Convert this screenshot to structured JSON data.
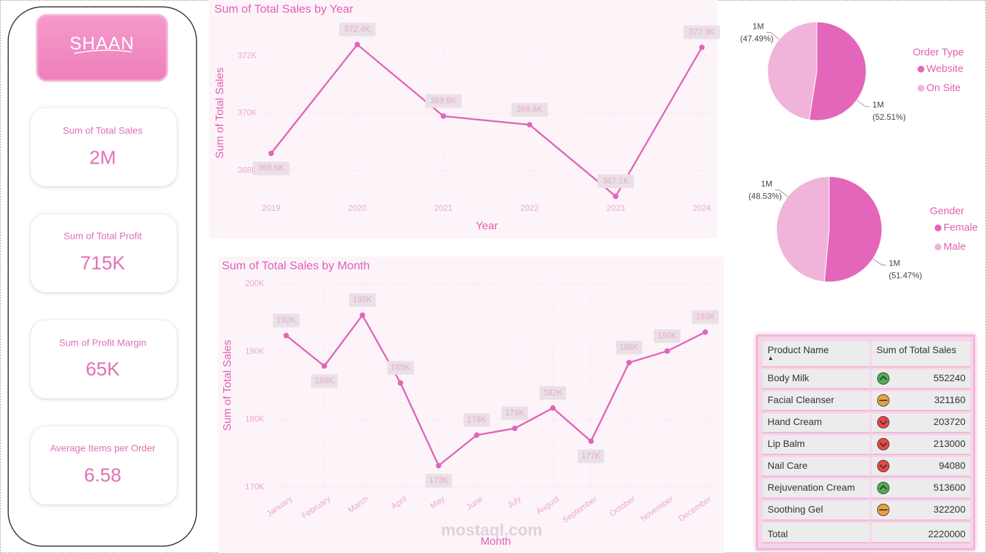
{
  "logo": "SHAAN",
  "kpis": [
    {
      "label": "Sum of Total Sales",
      "value": "2M"
    },
    {
      "label": "Sum of Total Profit",
      "value": "715K"
    },
    {
      "label": "Sum of Profit Margin",
      "value": "65K"
    },
    {
      "label": "Average Items per Order",
      "value": "6.58"
    }
  ],
  "chart_data": [
    {
      "type": "line",
      "title": "Sum of Total Sales by Year",
      "x_label": "Year",
      "y_label": "Sum of Total Sales",
      "categories": [
        "2019",
        "2020",
        "2021",
        "2022",
        "2023",
        "2024"
      ],
      "values": [
        368600,
        372400,
        369900,
        369600,
        367100,
        372300
      ],
      "value_labels": [
        "368.6K",
        "372.4K",
        "369.9K",
        "369.6K",
        "367.1K",
        "372.3K"
      ],
      "color": "#e066b8",
      "ylim": [
        367000,
        373000
      ],
      "yticks": [
        {
          "value": 368000,
          "label": "368K"
        },
        {
          "value": 370000,
          "label": "370K"
        },
        {
          "value": 372000,
          "label": "372K"
        }
      ],
      "grid": true
    },
    {
      "type": "line",
      "title": "Sum of Total Sales by Month",
      "x_label": "Month",
      "y_label": "Sum of Total Sales",
      "categories": [
        "January",
        "February",
        "March",
        "April",
        "May",
        "June",
        "July",
        "August",
        "September",
        "October",
        "November",
        "December"
      ],
      "values": [
        192400,
        187900,
        195400,
        185400,
        173200,
        177700,
        178700,
        181700,
        176800,
        188400,
        190100,
        192900
      ],
      "value_labels": [
        "192K",
        "188K",
        "195K",
        "185K",
        "173K",
        "178K",
        "179K",
        "182K",
        "177K",
        "188K",
        "190K",
        "193K"
      ],
      "color": "#e066b8",
      "ylim": [
        170000,
        200000
      ],
      "yticks": [
        {
          "value": 170000,
          "label": "170K"
        },
        {
          "value": 180000,
          "label": "180K"
        },
        {
          "value": 190000,
          "label": "190K"
        },
        {
          "value": 200000,
          "label": "200K"
        }
      ],
      "grid": true
    },
    {
      "type": "pie",
      "legend_title": "Order Type",
      "categories": [
        "Website",
        "On Site"
      ],
      "values": [
        1165722,
        1054278
      ],
      "value_labels": [
        "1M",
        "1M"
      ],
      "percent_labels": [
        "(52.51%)",
        "(47.49%)"
      ],
      "colors": [
        "#e466bb",
        "#f0b4da"
      ]
    },
    {
      "type": "pie",
      "legend_title": "Gender",
      "categories": [
        "Female",
        "Male"
      ],
      "values": [
        1142634,
        1077366
      ],
      "value_labels": [
        "1M",
        "1M"
      ],
      "percent_labels": [
        "(51.47%)",
        "(48.53%)"
      ],
      "colors": [
        "#e466bb",
        "#f0b4da"
      ]
    }
  ],
  "table": {
    "columns": [
      "Product Name",
      "Sum of Total Sales"
    ],
    "rows": [
      [
        "Body Milk",
        552240
      ],
      [
        "Facial Cleanser",
        321160
      ],
      [
        "Hand Cream",
        203720
      ],
      [
        "Lip Balm",
        213000
      ],
      [
        "Nail Care",
        94080
      ],
      [
        "Rejuvenation Cream",
        513600
      ],
      [
        "Soothing Gel",
        322200
      ]
    ],
    "status": [
      "up",
      "mid",
      "down",
      "down",
      "down",
      "up",
      "mid"
    ],
    "total": [
      "Total",
      2220000
    ]
  },
  "watermark": "mostaql.com"
}
